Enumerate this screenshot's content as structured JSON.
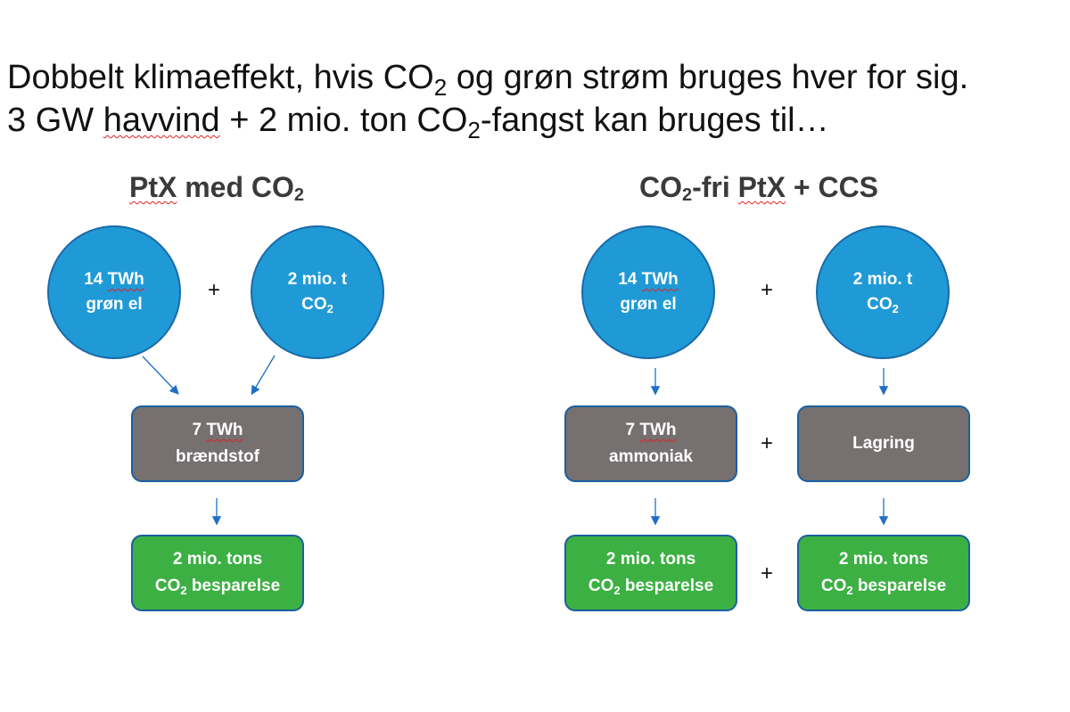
{
  "title": {
    "line1": {
      "pre": "Dobbelt klimaeffekt, hvis CO",
      "sub": "2",
      "post": " og grøn strøm bruges hver for sig."
    },
    "line2": {
      "pre": "3 GW ",
      "spell": "havvind",
      "mid": " + 2 mio. ton CO",
      "sub": "2",
      "post": "-fangst kan bruges til…"
    }
  },
  "left": {
    "heading": {
      "spell": "PtX",
      "post": " med CO",
      "sub": "2"
    },
    "input1": {
      "line1": "14 ",
      "line1_spell": "TWh",
      "line2": "grøn el"
    },
    "plus": "+",
    "input2": {
      "line1": "2 mio. t",
      "line2_pre": "CO",
      "line2_sub": "2"
    },
    "product": {
      "line1": "7 ",
      "line1_spell": "TWh",
      "line2": "brændstof"
    },
    "result": {
      "line1": "2 mio. tons",
      "line2_pre": "CO",
      "line2_sub": "2",
      "line2_post": " besparelse"
    }
  },
  "right": {
    "heading": {
      "pre": "CO",
      "sub": "2",
      "mid": "-fri ",
      "spell": "PtX",
      "post": " + CCS"
    },
    "input1": {
      "line1": "14 ",
      "line1_spell": "TWh",
      "line2": "grøn el"
    },
    "plus_inputs": "+",
    "input2": {
      "line1": "2 mio. t",
      "line2_pre": "CO",
      "line2_sub": "2"
    },
    "product": {
      "line1": "7 ",
      "line1_spell": "TWh",
      "line2": "ammoniak"
    },
    "plus_products": "+",
    "storage": "Lagring",
    "result1": {
      "line1": "2 mio. tons",
      "line2_pre": "CO",
      "line2_sub": "2",
      "line2_post": " besparelse"
    },
    "plus_results": "+",
    "result2": {
      "line1": "2 mio. tons",
      "line2_pre": "CO",
      "line2_sub": "2",
      "line2_post": " besparelse"
    }
  },
  "colors": {
    "circle": "#1f9ad6",
    "process": "#767070",
    "result": "#3cb043",
    "arrow": "#1f6fc5"
  }
}
